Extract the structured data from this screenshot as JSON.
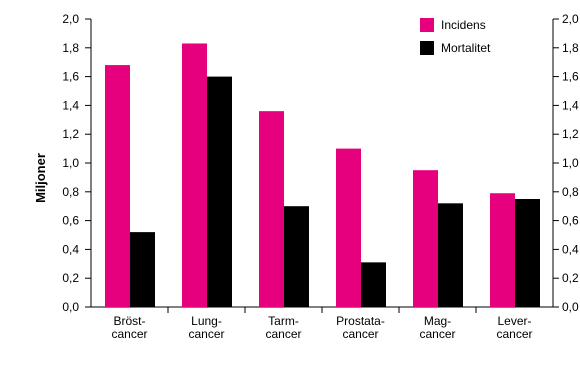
{
  "chart_data": {
    "type": "bar",
    "title": "",
    "xlabel": "",
    "ylabel": "Miljoner",
    "ylim": [
      0,
      2
    ],
    "yticks": [
      "0,0",
      "0,2",
      "0,4",
      "0,6",
      "0,8",
      "1,0",
      "1,2",
      "1,4",
      "1,6",
      "1,8",
      "2,0"
    ],
    "categories": [
      [
        "Bröst-",
        "cancer"
      ],
      [
        "Lung-",
        "cancer"
      ],
      [
        "Tarm-",
        "cancer"
      ],
      [
        "Prostata-",
        "cancer"
      ],
      [
        "Mag-",
        "cancer"
      ],
      [
        "Lever-",
        "cancer"
      ]
    ],
    "series": [
      {
        "name": "Incidens",
        "color": "#e6007e",
        "values": [
          1.68,
          1.83,
          1.36,
          1.1,
          0.95,
          0.79
        ]
      },
      {
        "name": "Mortalitet",
        "color": "#000000",
        "values": [
          0.52,
          1.6,
          0.7,
          0.31,
          0.72,
          0.75
        ]
      }
    ],
    "legend": "top-right",
    "grid": false,
    "right_axis": true
  }
}
